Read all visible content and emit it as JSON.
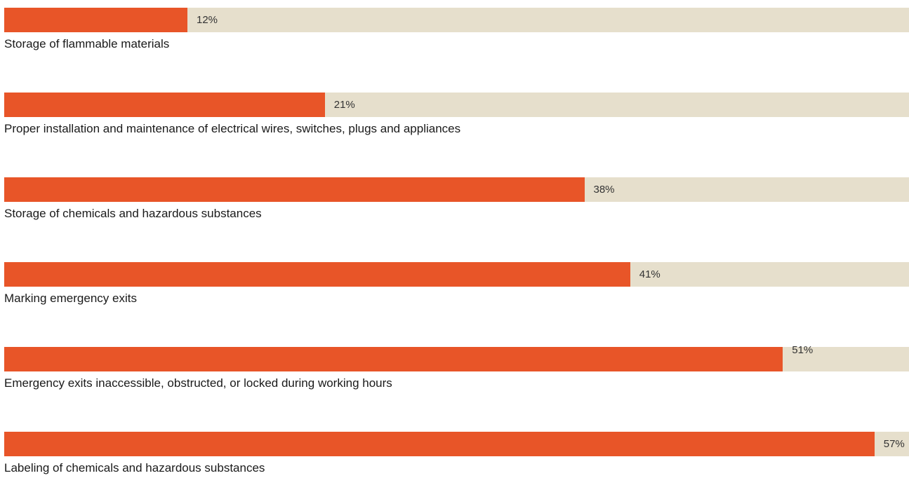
{
  "colors": {
    "bar": "#e85528",
    "track": "#e6dfcc"
  },
  "chart_data": {
    "type": "bar",
    "orientation": "horizontal",
    "unit": "%",
    "xlim": [
      0,
      100
    ],
    "grid": false,
    "categories": [
      "Storage of flammable materials",
      "Proper installation and maintenance of electrical wires, switches, plugs and appliances",
      "Storage of chemicals and hazardous substances",
      "Marking emergency exits",
      "Emergency exits inaccessible, obstructed, or locked during working hours",
      "Labeling of chemicals and hazardous substances"
    ],
    "values": [
      12,
      21,
      38,
      41,
      51,
      57
    ],
    "value_labels": [
      "12%",
      "21%",
      "38%",
      "41%",
      "51%",
      "57%"
    ]
  }
}
